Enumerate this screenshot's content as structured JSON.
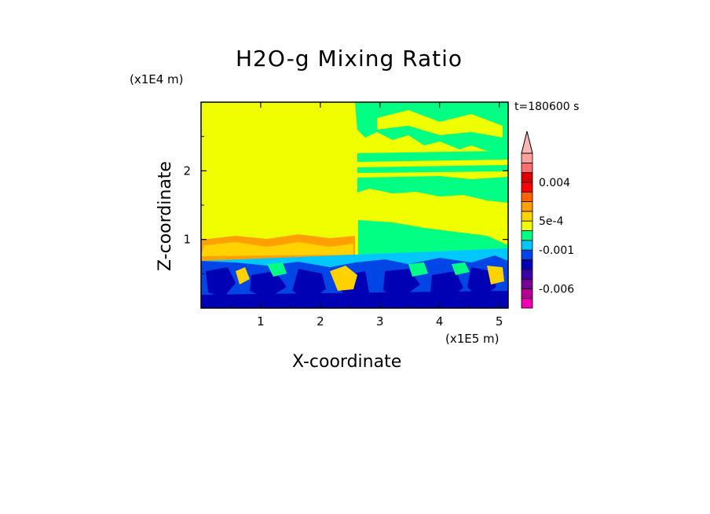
{
  "chart_data": {
    "type": "heatmap",
    "title": "H2O-g Mixing Ratio",
    "xlabel": "X-coordinate",
    "ylabel": "Z-coordinate",
    "x_unit": "(x1E5 m)",
    "y_unit": "(x1E4 m)",
    "timestamp": "t=180600 s",
    "xlim": [
      0,
      5.15
    ],
    "ylim": [
      0,
      3.0
    ],
    "x_ticks": [
      1,
      2,
      3,
      4,
      5
    ],
    "x_tick_labels": [
      "1",
      "2",
      "3",
      "4",
      "5"
    ],
    "y_ticks": [
      1,
      2
    ],
    "y_tick_labels": [
      "1",
      "2"
    ],
    "colorbar": {
      "levels": [
        -0.009,
        -0.0075,
        -0.006,
        -0.0045,
        -0.003,
        -0.002,
        -0.001,
        -0.0005,
        0,
        0.0005,
        0.001,
        0.002,
        0.003,
        0.004,
        0.005,
        0.006
      ],
      "colors": [
        "#f000b4",
        "#b40096",
        "#780096",
        "#3c00aa",
        "#0000b4",
        "#0046e6",
        "#00c8ff",
        "#00ff82",
        "#f0ff00",
        "#ffd200",
        "#ffa000",
        "#ff6400",
        "#ff0000",
        "#dc0000",
        "#ff6e6e",
        "#ffa0a0"
      ],
      "labels": [
        {
          "value": 0.004,
          "text": "0.004"
        },
        {
          "value": 0.0005,
          "text": "5e-4"
        },
        {
          "value": -0.001,
          "text": "-0.001"
        },
        {
          "value": -0.006,
          "text": "-0.006"
        }
      ],
      "extend": "max"
    },
    "regions": [
      {
        "x": [
          0,
          5.15
        ],
        "z": [
          0,
          3.0
        ],
        "value": 0.0,
        "note": "upper domain near zero (yellow)"
      },
      {
        "x": [
          2.55,
          5.15
        ],
        "z": [
          1.3,
          3.0
        ],
        "value": -0.0005,
        "note": "green streaks right half aloft"
      },
      {
        "x": [
          0,
          2.6
        ],
        "z": [
          0.7,
          1.0
        ],
        "value": 0.001,
        "note": "orange layer"
      },
      {
        "x": [
          0,
          5.15
        ],
        "z": [
          0,
          0.7
        ],
        "value": -0.002,
        "note": "turbulent blue boundary layer"
      }
    ],
    "colors": {
      "yellow": "#f0ff00",
      "green": "#00ff82",
      "cyan": "#00c8ff",
      "blue": "#0046e6",
      "navy": "#0000b4",
      "orange": "#ffa000",
      "light_orange": "#ffd200"
    }
  }
}
